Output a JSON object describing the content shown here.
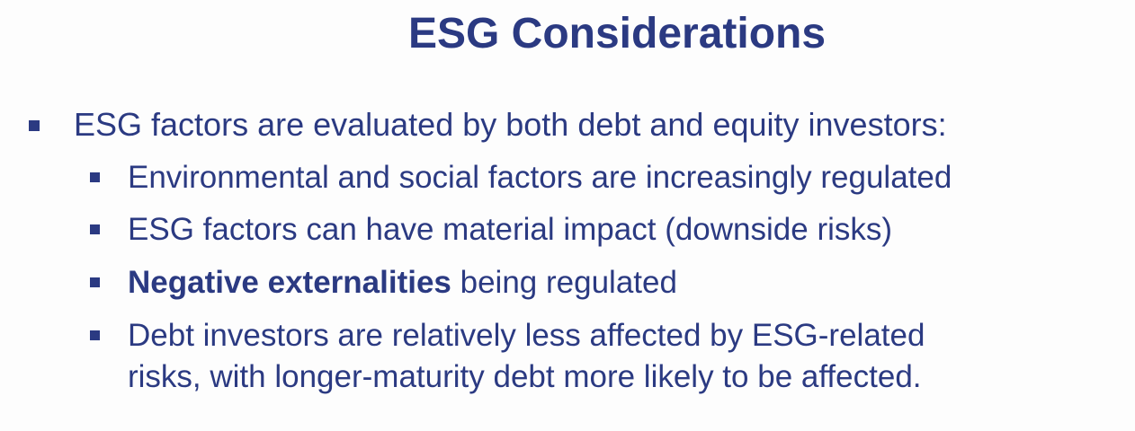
{
  "slide": {
    "title": "ESG Considerations",
    "bullets": [
      {
        "text": "ESG factors are evaluated by both debt and equity investors:",
        "level": 1
      },
      {
        "text": "Environmental and social factors are increasingly regulated",
        "level": 2
      },
      {
        "text": "ESG factors can have material impact (downside risks)",
        "level": 2
      },
      {
        "bold_text": "Negative externalities",
        "text": " being regulated",
        "level": 2
      },
      {
        "line1": "Debt investors are relatively less affected by ESG-related",
        "line2": "risks, with longer-maturity debt more likely to be affected.",
        "level": 2
      }
    ]
  },
  "colors": {
    "text": "#2b3a82",
    "background": "#fdfdfd"
  }
}
